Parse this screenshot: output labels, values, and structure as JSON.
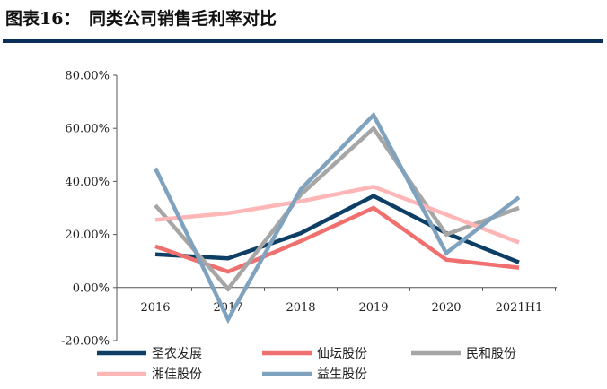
{
  "figure": {
    "title": "图表16：　同类公司销售毛利率对比"
  },
  "chart_data": {
    "type": "line",
    "title": "",
    "xlabel": "",
    "ylabel": "",
    "categories": [
      "2016",
      "2017",
      "2018",
      "2019",
      "2020",
      "2021H1"
    ],
    "ylim": [
      -20,
      80
    ],
    "yticks": [
      -20,
      0,
      20,
      40,
      60,
      80
    ],
    "ytick_labels": [
      "-20.00%",
      "0.00%",
      "20.00%",
      "40.00%",
      "60.00%",
      "80.00%"
    ],
    "grid": false,
    "legend_position": "bottom",
    "series": [
      {
        "name": "圣农发展",
        "color": "#0d3f66",
        "values": [
          12.5,
          11,
          20.5,
          34.5,
          20.5,
          9.5
        ]
      },
      {
        "name": "仙坛股份",
        "color": "#f07070",
        "values": [
          15.5,
          6,
          17.5,
          30,
          10.5,
          7.5
        ]
      },
      {
        "name": "民和股份",
        "color": "#a6a6a6",
        "values": [
          31,
          -0.5,
          35,
          60,
          20,
          30
        ]
      },
      {
        "name": "湘佳股份",
        "color": "#ffb6b6",
        "values": [
          25.5,
          28,
          32.5,
          38,
          27.5,
          17
        ]
      },
      {
        "name": "益生股份",
        "color": "#7fa3bf",
        "values": [
          45,
          -12,
          37,
          65,
          13,
          34
        ]
      }
    ]
  }
}
